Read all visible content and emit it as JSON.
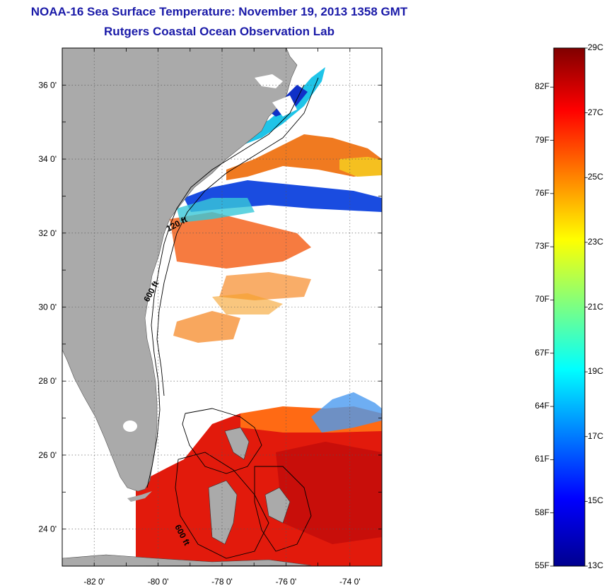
{
  "header": {
    "title": "NOAA-16 Sea Surface Temperature:  November 19, 2013 1358 GMT",
    "subtitle": "Rutgers Coastal Ocean Observation Lab"
  },
  "map": {
    "lon_range": [
      -83,
      -73
    ],
    "lat_range": [
      23,
      37
    ],
    "lon_ticks": [
      "-82 0'",
      "-80 0'",
      "-78 0'",
      "-76 0'",
      "-74 0'"
    ],
    "lat_ticks": [
      "36 0'",
      "34 0'",
      "32 0'",
      "30 0'",
      "28 0'",
      "26 0'",
      "24 0'"
    ],
    "contour_labels": [
      "120 ft",
      "600 ft",
      "600 ft"
    ],
    "land_color": "#aaaaaa"
  },
  "colorbar": {
    "fahrenheit_labels": [
      "82F",
      "79F",
      "76F",
      "73F",
      "70F",
      "67F",
      "64F",
      "61F",
      "58F",
      "55F"
    ],
    "celsius_labels": [
      "29C",
      "27C",
      "25C",
      "23C",
      "21C",
      "19C",
      "17C",
      "15C",
      "13C"
    ],
    "colors": [
      "#800000",
      "#ff0000",
      "#ffff00",
      "#00ffff",
      "#0000ff",
      "#00008f"
    ]
  }
}
